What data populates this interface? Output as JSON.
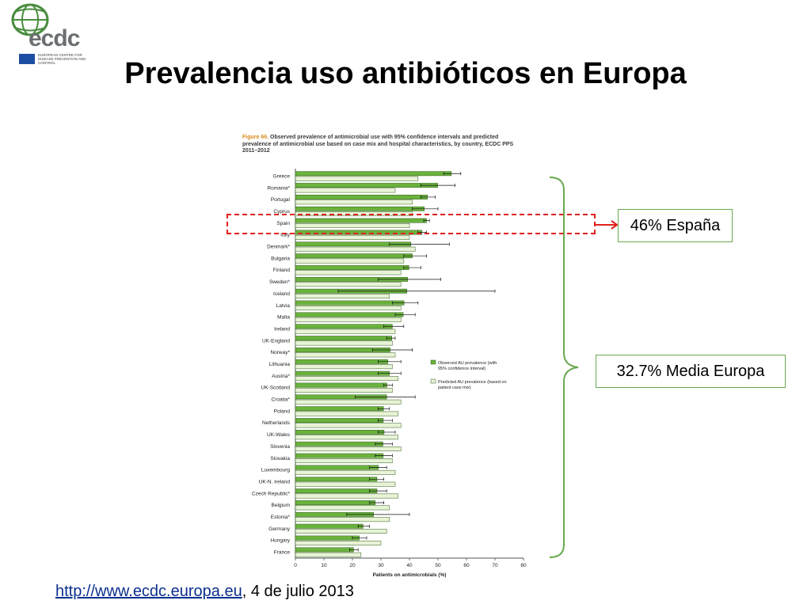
{
  "logo": {
    "brand": "ecdc",
    "agency_text": "EUROPEAN CENTRE FOR DISEASE PREVENTION AND CONTROL"
  },
  "slide_title": "Prevalencia uso antibióticos en Europa",
  "callouts": {
    "spain": "46% España",
    "mean": "32.7% Media Europa"
  },
  "source": {
    "link_text": "http://www.ecdc.europa.eu",
    "suffix": ", 4 de julio 2013"
  },
  "colors": {
    "observed": "#6ab23d",
    "predicted": "#e8f3d6",
    "highlight": "#e0201b",
    "brace": "#6aa84f",
    "link": "#0b2f8f"
  },
  "chart_data": {
    "type": "bar",
    "orientation": "horizontal",
    "caption_label": "Figure 66.",
    "caption_text": "Observed prevalence of antimicrobial use with 95% confidence intervals and predicted prevalence of antimicrobial use based on case mix and hospital characteristics, by country, ECDC PPS 2011–2012",
    "xlabel": "Patients on antimicrobials (%)",
    "xlim": [
      0,
      80
    ],
    "xticks": [
      0,
      10,
      20,
      30,
      40,
      50,
      60,
      70,
      80
    ],
    "legend_position": "right",
    "legend": [
      "Observed AU prevalence (with 95% confidence interval)",
      "Predicted AU prevalence (based on patient case mix)"
    ],
    "categories": [
      "Greece",
      "Romania*",
      "Portugal",
      "Cyprus",
      "Spain",
      "Italy",
      "Denmark*",
      "Bulgaria",
      "Finland",
      "Sweden*",
      "Iceland",
      "Latvia",
      "Malta",
      "Ireland",
      "UK-England",
      "Norway*",
      "Lithuania",
      "Austria*",
      "UK-Scotland",
      "Croatia*",
      "Poland",
      "Netherlands",
      "UK-Wales",
      "Slovenia",
      "Slovakia",
      "Luxembourg",
      "UK-N. Ireland",
      "Czech Republic*",
      "Belgium",
      "Estonia*",
      "Germany",
      "Hungary",
      "France"
    ],
    "series": [
      {
        "name": "Observed AU prevalence (with 95% confidence interval)",
        "values": [
          54.7,
          49.9,
          46.3,
          45.2,
          46.0,
          44.4,
          40.5,
          41.0,
          39.8,
          39.4,
          39.1,
          38.1,
          37.8,
          34.0,
          33.8,
          33.2,
          32.4,
          33.0,
          32.1,
          32.0,
          30.9,
          30.8,
          31.1,
          30.7,
          30.8,
          29.1,
          28.6,
          28.6,
          28.0,
          27.4,
          23.7,
          22.4,
          20.4
        ],
        "ci_low": [
          52,
          44,
          44,
          41,
          45,
          43,
          33,
          38,
          38,
          29,
          15,
          34,
          35,
          31,
          32,
          27,
          29,
          29,
          31,
          21,
          29,
          29,
          29,
          28,
          28,
          26,
          26,
          26,
          26,
          18,
          22,
          20,
          19
        ],
        "ci_high": [
          58,
          56,
          49,
          50,
          47,
          46,
          54,
          46,
          44,
          51,
          70,
          43,
          42,
          38,
          35,
          41,
          37,
          37,
          34,
          42,
          33,
          34,
          35,
          34,
          34,
          32,
          31,
          32,
          31,
          40,
          26,
          25,
          22
        ]
      },
      {
        "name": "Predicted AU prevalence (based on patient case mix)",
        "values": [
          43,
          35,
          41,
          41,
          40,
          40,
          42,
          38,
          37,
          37,
          33,
          37,
          37,
          35,
          34,
          35,
          34,
          36,
          34,
          37,
          36,
          37,
          36,
          37,
          34,
          35,
          35,
          36,
          33,
          33,
          32,
          30,
          23
        ]
      }
    ]
  }
}
